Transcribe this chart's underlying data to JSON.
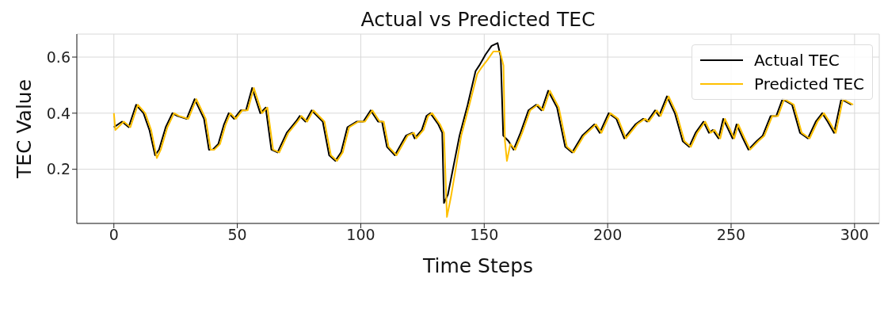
{
  "chart_data": {
    "type": "line",
    "title": "Actual vs Predicted TEC",
    "xlabel": "Time Steps",
    "ylabel": "TEC Value",
    "xlim": [
      -15,
      310
    ],
    "ylim": [
      0.007,
      0.682
    ],
    "xticks": [
      0,
      50,
      100,
      150,
      200,
      250,
      300
    ],
    "yticks": [
      0.2,
      0.4,
      0.6
    ],
    "grid": true,
    "legend": "top right",
    "series": [
      {
        "name": "Actual TEC",
        "color": "#000000",
        "x": [
          0,
          3.3,
          6,
          9,
          12,
          14.4,
          16.7,
          18.3,
          21,
          23.7,
          25.7,
          29.5,
          32.7,
          36.5,
          38.5,
          40,
          42.3,
          44.6,
          46.5,
          48.7,
          51.3,
          53.5,
          56,
          59.3,
          61.5,
          63.8,
          66.3,
          70,
          73.7,
          75.3,
          77.6,
          80.1,
          84.6,
          87.2,
          89.7,
          92,
          94.6,
          98.4,
          101,
          104,
          107,
          108.6,
          110.6,
          113.8,
          118.3,
          120.8,
          121.8,
          124.7,
          126.6,
          128.2,
          131.4,
          133,
          133.7,
          135.3,
          140,
          143.3,
          146.5,
          148,
          150.6,
          153,
          155.4,
          156.7,
          157.7,
          159.9,
          161.9,
          164.7,
          167.9,
          171,
          173.2,
          175.9,
          179.5,
          182.8,
          185.6,
          189.7,
          194.6,
          196.8,
          200.4,
          203.5,
          206.7,
          211.2,
          214.4,
          216,
          219.2,
          220.8,
          224,
          227.2,
          230.4,
          233,
          235.6,
          238.8,
          241,
          242.6,
          244.9,
          246.8,
          250.6,
          252.2,
          254.8,
          257,
          260.3,
          262.8,
          266,
          268.3,
          270.8,
          274.7,
          277.9,
          281.1,
          284.3,
          286.9,
          289.1,
          291.7,
          294.6,
          298.7
        ],
        "values": [
          0.35,
          0.37,
          0.35,
          0.43,
          0.4,
          0.34,
          0.25,
          0.27,
          0.35,
          0.4,
          0.39,
          0.38,
          0.45,
          0.38,
          0.27,
          0.27,
          0.29,
          0.36,
          0.4,
          0.38,
          0.41,
          0.41,
          0.49,
          0.4,
          0.42,
          0.27,
          0.26,
          0.33,
          0.37,
          0.39,
          0.37,
          0.41,
          0.37,
          0.25,
          0.23,
          0.26,
          0.35,
          0.37,
          0.37,
          0.41,
          0.37,
          0.37,
          0.28,
          0.25,
          0.32,
          0.33,
          0.31,
          0.34,
          0.39,
          0.4,
          0.36,
          0.33,
          0.08,
          0.11,
          0.32,
          0.43,
          0.55,
          0.57,
          0.61,
          0.64,
          0.65,
          0.6,
          0.32,
          0.3,
          0.27,
          0.33,
          0.41,
          0.43,
          0.41,
          0.48,
          0.42,
          0.28,
          0.26,
          0.32,
          0.36,
          0.33,
          0.4,
          0.38,
          0.31,
          0.36,
          0.38,
          0.37,
          0.41,
          0.39,
          0.46,
          0.4,
          0.3,
          0.28,
          0.33,
          0.37,
          0.33,
          0.34,
          0.31,
          0.38,
          0.31,
          0.36,
          0.31,
          0.27,
          0.3,
          0.32,
          0.39,
          0.39,
          0.45,
          0.43,
          0.33,
          0.31,
          0.37,
          0.4,
          0.37,
          0.33,
          0.45,
          0.43
        ]
      },
      {
        "name": "Predicted TEC",
        "color": "#ffc000",
        "x": [
          0,
          0.6,
          4,
          6.7,
          9.7,
          12.7,
          15.1,
          17.4,
          19,
          21.7,
          24.4,
          26.4,
          30.2,
          33.4,
          37.2,
          39.2,
          40.7,
          43,
          45.3,
          47.2,
          49.4,
          52,
          54.2,
          56.7,
          60,
          62.2,
          64.5,
          67,
          70.7,
          74.4,
          76,
          78.3,
          80.8,
          85.3,
          87.9,
          90.4,
          92.7,
          95.3,
          99.1,
          101.7,
          104.7,
          107.7,
          109.3,
          111.3,
          114.5,
          119,
          121.5,
          122.5,
          125.4,
          127.3,
          128.9,
          132.1,
          133.7,
          134.9,
          136.5,
          140.7,
          144,
          147.2,
          148.7,
          151.3,
          153.7,
          156.4,
          157.8,
          158.4,
          159.2,
          160.6,
          162.6,
          165.4,
          168.6,
          171.7,
          173.9,
          176.6,
          180.2,
          183.5,
          186.3,
          190.4,
          195.3,
          197.5,
          201.1,
          204.2,
          207.4,
          211.9,
          215.1,
          216.7,
          219.9,
          221.5,
          224.7,
          227.9,
          231.1,
          233.7,
          236.3,
          239.5,
          241.7,
          243.3,
          245.6,
          247.5,
          251.3,
          252.9,
          255.5,
          257.7,
          261,
          263.5,
          266.7,
          269,
          271.5,
          275.4,
          278.6,
          281.8,
          285,
          287.6,
          289.8,
          292.4,
          295.3,
          299.4
        ],
        "values": [
          0.4,
          0.34,
          0.37,
          0.35,
          0.43,
          0.4,
          0.34,
          0.24,
          0.27,
          0.35,
          0.4,
          0.39,
          0.38,
          0.45,
          0.38,
          0.27,
          0.27,
          0.29,
          0.36,
          0.4,
          0.38,
          0.41,
          0.41,
          0.49,
          0.4,
          0.42,
          0.27,
          0.26,
          0.33,
          0.37,
          0.39,
          0.37,
          0.41,
          0.37,
          0.25,
          0.23,
          0.26,
          0.35,
          0.37,
          0.37,
          0.41,
          0.37,
          0.37,
          0.28,
          0.25,
          0.32,
          0.33,
          0.31,
          0.34,
          0.39,
          0.4,
          0.36,
          0.33,
          0.03,
          0.1,
          0.32,
          0.43,
          0.54,
          0.56,
          0.59,
          0.62,
          0.62,
          0.57,
          0.3,
          0.23,
          0.29,
          0.27,
          0.33,
          0.41,
          0.43,
          0.41,
          0.48,
          0.42,
          0.28,
          0.26,
          0.32,
          0.36,
          0.33,
          0.4,
          0.38,
          0.31,
          0.36,
          0.38,
          0.37,
          0.41,
          0.39,
          0.46,
          0.4,
          0.3,
          0.28,
          0.33,
          0.37,
          0.33,
          0.34,
          0.31,
          0.38,
          0.31,
          0.36,
          0.31,
          0.27,
          0.3,
          0.32,
          0.39,
          0.39,
          0.45,
          0.43,
          0.33,
          0.31,
          0.37,
          0.4,
          0.37,
          0.33,
          0.45,
          0.43
        ]
      }
    ]
  }
}
